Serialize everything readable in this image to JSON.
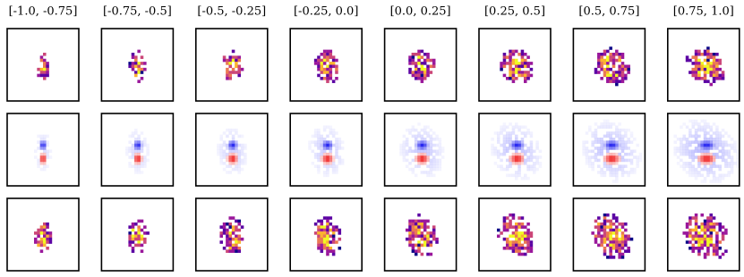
{
  "panel_titles": [
    "[-1.0, -0.75]",
    "[-0.75, -0.5]",
    "[-0.5, -0.25]",
    "[-0.25, 0.0]",
    "[0.0, 0.25]",
    "[0.25, 0.5]",
    "[0.5, 0.75]",
    "[0.75, 1.0]"
  ]
}
